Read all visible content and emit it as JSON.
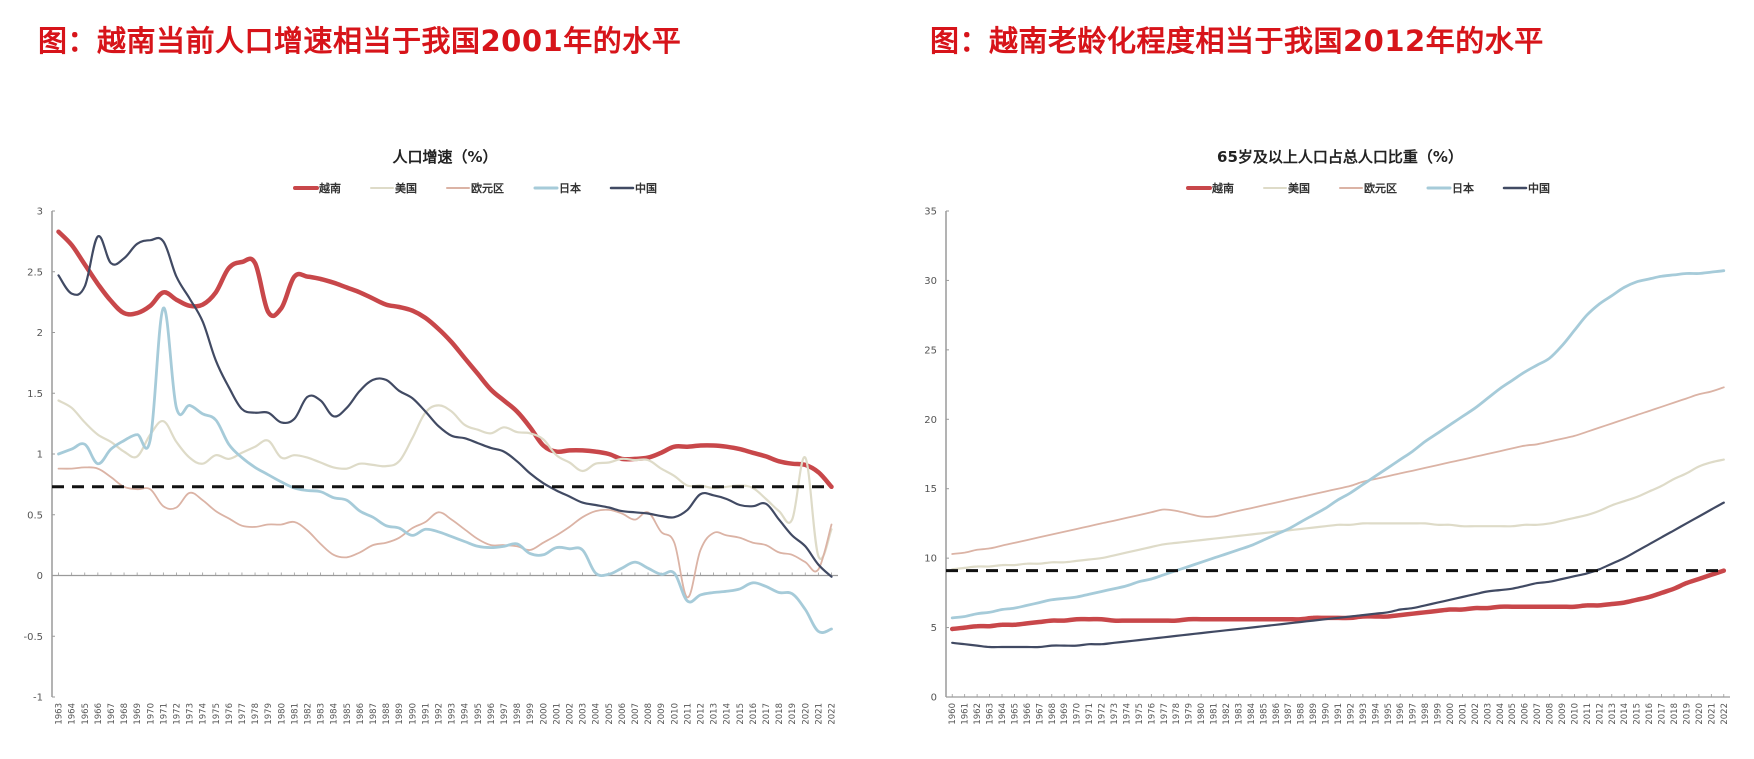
{
  "headings": {
    "left": "图：越南当前人口增速相当于我国2001年的水平",
    "right": "图：越南老龄化程度相当于我国2012年的水平"
  },
  "colors": {
    "heading": "#d7141a",
    "越南": "#c8474a",
    "美国": "#dedbc8",
    "欧元区": "#dbb3a5",
    "日本": "#a6cbd9",
    "中国": "#414a63",
    "reference_line": "#111111"
  },
  "chart_data": [
    {
      "type": "line",
      "title": "人口增速（%）",
      "xlabel": "",
      "ylabel": "",
      "ylim": [
        -1,
        3
      ],
      "yticks": [
        -1,
        -0.5,
        0,
        0.5,
        1,
        1.5,
        2,
        2.5,
        3
      ],
      "ytick_labels": [
        "-1",
        "-0.5",
        "0",
        "0.5",
        "1",
        "1.5",
        "2",
        "2.5",
        "3"
      ],
      "legend_position": "top-center",
      "grid": false,
      "x": [
        1963,
        1964,
        1965,
        1966,
        1967,
        1968,
        1969,
        1970,
        1971,
        1972,
        1973,
        1974,
        1975,
        1976,
        1977,
        1978,
        1979,
        1980,
        1981,
        1982,
        1983,
        1984,
        1985,
        1986,
        1987,
        1988,
        1989,
        1990,
        1991,
        1992,
        1993,
        1994,
        1995,
        1996,
        1997,
        1998,
        1999,
        2000,
        2001,
        2002,
        2003,
        2004,
        2005,
        2006,
        2007,
        2008,
        2009,
        2010,
        2011,
        2012,
        2013,
        2014,
        2015,
        2016,
        2017,
        2018,
        2019,
        2020,
        2021,
        2022
      ],
      "reference_line": {
        "y": 0.73,
        "style": "dashed",
        "label": ""
      },
      "series": [
        {
          "name": "越南",
          "values": [
            2.83,
            2.72,
            2.56,
            2.4,
            2.26,
            2.16,
            2.16,
            2.22,
            2.33,
            2.27,
            2.22,
            2.23,
            2.33,
            2.53,
            2.58,
            2.57,
            2.17,
            2.2,
            2.46,
            2.46,
            2.44,
            2.41,
            2.37,
            2.33,
            2.28,
            2.23,
            2.21,
            2.18,
            2.12,
            2.03,
            1.92,
            1.79,
            1.66,
            1.53,
            1.44,
            1.35,
            1.22,
            1.07,
            1.02,
            1.03,
            1.03,
            1.02,
            1.0,
            0.96,
            0.96,
            0.97,
            1.01,
            1.06,
            1.06,
            1.07,
            1.07,
            1.06,
            1.04,
            1.01,
            0.98,
            0.94,
            0.92,
            0.91,
            0.85,
            0.73
          ]
        },
        {
          "name": "美国",
          "values": [
            1.44,
            1.38,
            1.26,
            1.16,
            1.1,
            1.02,
            0.98,
            1.16,
            1.27,
            1.1,
            0.97,
            0.92,
            0.99,
            0.96,
            1.01,
            1.06,
            1.11,
            0.97,
            0.99,
            0.97,
            0.93,
            0.89,
            0.88,
            0.92,
            0.91,
            0.9,
            0.94,
            1.13,
            1.34,
            1.4,
            1.35,
            1.24,
            1.2,
            1.17,
            1.22,
            1.18,
            1.17,
            1.12,
            0.99,
            0.93,
            0.86,
            0.92,
            0.93,
            0.96,
            0.95,
            0.95,
            0.88,
            0.82,
            0.74,
            0.74,
            0.72,
            0.73,
            0.74,
            0.72,
            0.63,
            0.53,
            0.46,
            0.97,
            0.16,
            0.38
          ]
        },
        {
          "name": "欧元区",
          "values": [
            0.88,
            0.88,
            0.89,
            0.88,
            0.81,
            0.73,
            0.71,
            0.71,
            0.57,
            0.56,
            0.68,
            0.62,
            0.53,
            0.47,
            0.41,
            0.4,
            0.42,
            0.42,
            0.44,
            0.37,
            0.26,
            0.17,
            0.15,
            0.19,
            0.25,
            0.27,
            0.31,
            0.39,
            0.44,
            0.52,
            0.46,
            0.38,
            0.3,
            0.25,
            0.25,
            0.24,
            0.21,
            0.27,
            0.33,
            0.4,
            0.48,
            0.53,
            0.54,
            0.51,
            0.46,
            0.52,
            0.36,
            0.27,
            -0.18,
            0.21,
            0.35,
            0.33,
            0.31,
            0.27,
            0.25,
            0.19,
            0.17,
            0.11,
            0.05,
            0.42
          ]
        },
        {
          "name": "日本",
          "values": [
            1.0,
            1.04,
            1.08,
            0.92,
            1.04,
            1.11,
            1.16,
            1.12,
            2.2,
            1.38,
            1.4,
            1.33,
            1.28,
            1.08,
            0.97,
            0.89,
            0.83,
            0.77,
            0.72,
            0.7,
            0.69,
            0.64,
            0.62,
            0.53,
            0.48,
            0.41,
            0.39,
            0.33,
            0.38,
            0.36,
            0.32,
            0.28,
            0.24,
            0.23,
            0.24,
            0.26,
            0.18,
            0.17,
            0.23,
            0.22,
            0.21,
            0.02,
            0.01,
            0.06,
            0.11,
            0.06,
            0.01,
            0.02,
            -0.21,
            -0.16,
            -0.14,
            -0.13,
            -0.11,
            -0.06,
            -0.09,
            -0.14,
            -0.15,
            -0.28,
            -0.46,
            -0.44
          ]
        },
        {
          "name": "中国",
          "values": [
            2.47,
            2.32,
            2.38,
            2.79,
            2.57,
            2.61,
            2.73,
            2.76,
            2.75,
            2.46,
            2.28,
            2.09,
            1.77,
            1.55,
            1.37,
            1.34,
            1.34,
            1.26,
            1.29,
            1.47,
            1.44,
            1.31,
            1.38,
            1.52,
            1.61,
            1.61,
            1.52,
            1.46,
            1.35,
            1.23,
            1.15,
            1.13,
            1.09,
            1.05,
            1.02,
            0.94,
            0.84,
            0.76,
            0.7,
            0.65,
            0.6,
            0.58,
            0.56,
            0.53,
            0.52,
            0.51,
            0.49,
            0.48,
            0.54,
            0.67,
            0.66,
            0.63,
            0.58,
            0.57,
            0.59,
            0.46,
            0.33,
            0.24,
            0.09,
            -0.01
          ]
        }
      ]
    },
    {
      "type": "line",
      "title": "65岁及以上人口占总人口比重（%）",
      "xlabel": "",
      "ylabel": "",
      "ylim": [
        0,
        35
      ],
      "yticks": [
        0,
        5,
        10,
        15,
        20,
        25,
        30,
        35
      ],
      "ytick_labels": [
        "0",
        "5",
        "10",
        "15",
        "20",
        "25",
        "30",
        "35"
      ],
      "legend_position": "top-center",
      "grid": false,
      "x": [
        1960,
        1961,
        1962,
        1963,
        1964,
        1965,
        1966,
        1967,
        1968,
        1969,
        1970,
        1971,
        1972,
        1973,
        1974,
        1975,
        1976,
        1977,
        1978,
        1979,
        1980,
        1981,
        1982,
        1983,
        1984,
        1985,
        1986,
        1987,
        1988,
        1989,
        1990,
        1991,
        1992,
        1993,
        1994,
        1995,
        1996,
        1997,
        1998,
        1999,
        2000,
        2001,
        2002,
        2003,
        2004,
        2005,
        2006,
        2007,
        2008,
        2009,
        2010,
        2011,
        2012,
        2013,
        2014,
        2015,
        2016,
        2017,
        2018,
        2019,
        2020,
        2021,
        2022
      ],
      "reference_line": {
        "y": 9.1,
        "style": "dashed",
        "label": ""
      },
      "series": [
        {
          "name": "越南",
          "values": [
            4.9,
            5.0,
            5.1,
            5.1,
            5.2,
            5.2,
            5.3,
            5.4,
            5.5,
            5.5,
            5.6,
            5.6,
            5.6,
            5.5,
            5.5,
            5.5,
            5.5,
            5.5,
            5.5,
            5.6,
            5.6,
            5.6,
            5.6,
            5.6,
            5.6,
            5.6,
            5.6,
            5.6,
            5.6,
            5.7,
            5.7,
            5.7,
            5.7,
            5.8,
            5.8,
            5.8,
            5.9,
            6.0,
            6.1,
            6.2,
            6.3,
            6.3,
            6.4,
            6.4,
            6.5,
            6.5,
            6.5,
            6.5,
            6.5,
            6.5,
            6.5,
            6.6,
            6.6,
            6.7,
            6.8,
            7.0,
            7.2,
            7.5,
            7.8,
            8.2,
            8.5,
            8.8,
            9.1
          ]
        },
        {
          "name": "美国",
          "values": [
            9.2,
            9.3,
            9.4,
            9.4,
            9.5,
            9.5,
            9.6,
            9.6,
            9.7,
            9.7,
            9.8,
            9.9,
            10.0,
            10.2,
            10.4,
            10.6,
            10.8,
            11.0,
            11.1,
            11.2,
            11.3,
            11.4,
            11.5,
            11.6,
            11.7,
            11.8,
            11.9,
            12.0,
            12.1,
            12.2,
            12.3,
            12.4,
            12.4,
            12.5,
            12.5,
            12.5,
            12.5,
            12.5,
            12.5,
            12.4,
            12.4,
            12.3,
            12.3,
            12.3,
            12.3,
            12.3,
            12.4,
            12.4,
            12.5,
            12.7,
            12.9,
            13.1,
            13.4,
            13.8,
            14.1,
            14.4,
            14.8,
            15.2,
            15.7,
            16.1,
            16.6,
            16.9,
            17.1
          ]
        },
        {
          "name": "欧元区",
          "values": [
            10.3,
            10.4,
            10.6,
            10.7,
            10.9,
            11.1,
            11.3,
            11.5,
            11.7,
            11.9,
            12.1,
            12.3,
            12.5,
            12.7,
            12.9,
            13.1,
            13.3,
            13.5,
            13.4,
            13.2,
            13.0,
            13.0,
            13.2,
            13.4,
            13.6,
            13.8,
            14.0,
            14.2,
            14.4,
            14.6,
            14.8,
            15.0,
            15.2,
            15.5,
            15.7,
            15.9,
            16.1,
            16.3,
            16.5,
            16.7,
            16.9,
            17.1,
            17.3,
            17.5,
            17.7,
            17.9,
            18.1,
            18.2,
            18.4,
            18.6,
            18.8,
            19.1,
            19.4,
            19.7,
            20.0,
            20.3,
            20.6,
            20.9,
            21.2,
            21.5,
            21.8,
            22.0,
            22.3
          ]
        },
        {
          "name": "日本",
          "values": [
            5.7,
            5.8,
            6.0,
            6.1,
            6.3,
            6.4,
            6.6,
            6.8,
            7.0,
            7.1,
            7.2,
            7.4,
            7.6,
            7.8,
            8.0,
            8.3,
            8.5,
            8.8,
            9.1,
            9.4,
            9.7,
            10.0,
            10.3,
            10.6,
            10.9,
            11.3,
            11.7,
            12.1,
            12.6,
            13.1,
            13.6,
            14.2,
            14.7,
            15.3,
            15.9,
            16.5,
            17.1,
            17.7,
            18.4,
            19.0,
            19.6,
            20.2,
            20.8,
            21.5,
            22.2,
            22.8,
            23.4,
            23.9,
            24.4,
            25.3,
            26.4,
            27.5,
            28.3,
            28.9,
            29.5,
            29.9,
            30.1,
            30.3,
            30.4,
            30.5,
            30.5,
            30.6,
            30.7
          ]
        },
        {
          "name": "中国",
          "values": [
            3.9,
            3.8,
            3.7,
            3.6,
            3.6,
            3.6,
            3.6,
            3.6,
            3.7,
            3.7,
            3.7,
            3.8,
            3.8,
            3.9,
            4.0,
            4.1,
            4.2,
            4.3,
            4.4,
            4.5,
            4.6,
            4.7,
            4.8,
            4.9,
            5.0,
            5.1,
            5.2,
            5.3,
            5.4,
            5.5,
            5.6,
            5.7,
            5.8,
            5.9,
            6.0,
            6.1,
            6.3,
            6.4,
            6.6,
            6.8,
            7.0,
            7.2,
            7.4,
            7.6,
            7.7,
            7.8,
            8.0,
            8.2,
            8.3,
            8.5,
            8.7,
            8.9,
            9.2,
            9.6,
            10.0,
            10.5,
            11.0,
            11.5,
            12.0,
            12.5,
            13.0,
            13.5,
            14.0
          ]
        }
      ]
    }
  ]
}
